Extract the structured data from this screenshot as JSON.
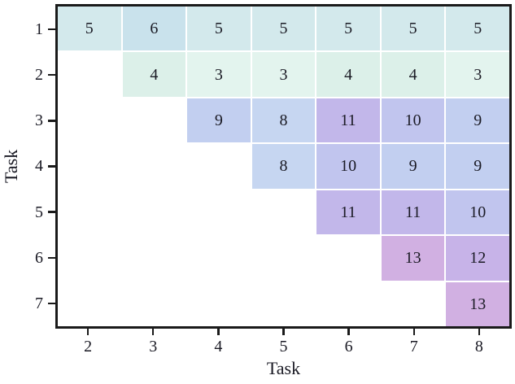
{
  "chart_data": {
    "type": "heatmap",
    "title": "",
    "xlabel": "Task",
    "ylabel": "Task",
    "x_categories": [
      "2",
      "3",
      "4",
      "5",
      "6",
      "7",
      "8"
    ],
    "y_categories": [
      "1",
      "2",
      "3",
      "4",
      "5",
      "6",
      "7"
    ],
    "matrix": [
      [
        5,
        6,
        5,
        5,
        5,
        5,
        5
      ],
      [
        null,
        4,
        3,
        3,
        4,
        4,
        3
      ],
      [
        null,
        null,
        9,
        8,
        11,
        10,
        9
      ],
      [
        null,
        null,
        null,
        8,
        10,
        9,
        9
      ],
      [
        null,
        null,
        null,
        null,
        11,
        11,
        10
      ],
      [
        null,
        null,
        null,
        null,
        null,
        13,
        12
      ],
      [
        null,
        null,
        null,
        null,
        null,
        null,
        13
      ]
    ],
    "value_colors": {
      "3": "#e3f4ee",
      "4": "#dcf0e9",
      "5": "#d3e9ec",
      "6": "#c9e2ec",
      "8": "#c6d6f1",
      "9": "#c2cff0",
      "10": "#c1c5ee",
      "11": "#c2b7ea",
      "12": "#c7b3e8",
      "13": "#d1b0e2"
    },
    "axis_color": "#1a1a1a",
    "text_color": "#1a1a24",
    "grid_gap_color": "#ffffff",
    "legend": "none",
    "xlim_note": "triangular upper matrix, cell (row,col) present when col >= row+1"
  }
}
